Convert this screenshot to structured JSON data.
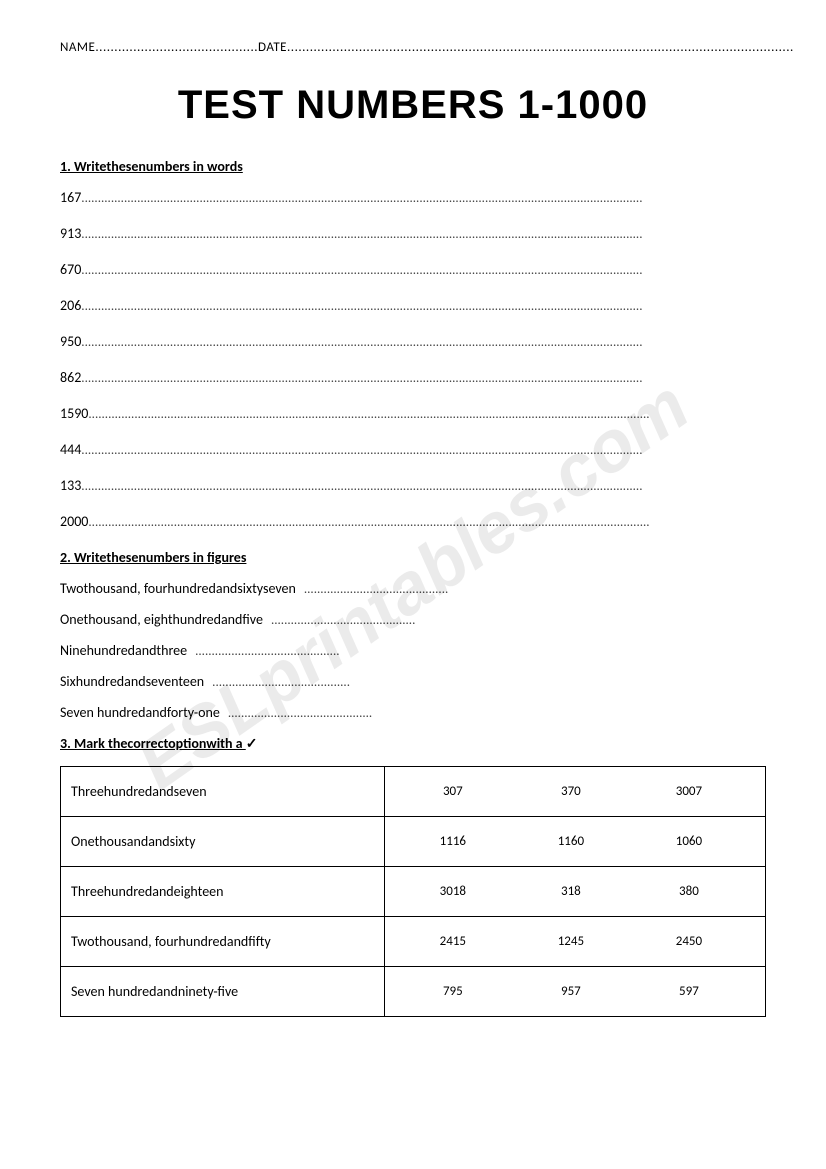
{
  "header": {
    "name_label": "NAME",
    "date_label": "DATE",
    "name_dots": "...........................................",
    "date_dots": "......................................................................................................................................"
  },
  "title": "TEST NUMBERS 1-1000",
  "watermark": "ESLprintables.com",
  "section1": {
    "heading": "1. Writethesenumbers in words",
    "items": [
      "167",
      "913",
      "670",
      "206",
      "950",
      "862",
      "1590",
      "444",
      "133",
      "2000"
    ],
    "dots_long": "..........................................................................................................................................................................."
  },
  "section2": {
    "heading": "2. Writethesenumbers in figures",
    "items": [
      {
        "text": "Twothousand, fourhundredandsixtyseven",
        "dots": "............................................"
      },
      {
        "text": "Onethousand, eighthundredandfive",
        "dots": "............................................"
      },
      {
        "text": "Ninehundredandthree",
        "dots": "............................................"
      },
      {
        "text": "Sixhundredandseventeen",
        "dots": ".........................................."
      },
      {
        "text": "Seven hundredandforty-one",
        "dots": "............................................"
      }
    ]
  },
  "section3": {
    "heading_pre": "3. Mark thecorrectoptionwith a ",
    "check": "✓",
    "rows": [
      {
        "label": "Threehundredandseven",
        "opts": [
          "307",
          "370",
          "3007"
        ]
      },
      {
        "label": "Onethousandandsixty",
        "opts": [
          "1116",
          "1160",
          "1060"
        ]
      },
      {
        "label": "Threehundredandeighteen",
        "opts": [
          "3018",
          "318",
          "380"
        ]
      },
      {
        "label": "Twothousand, fourhundredandfifty",
        "opts": [
          "2415",
          "1245",
          "2450"
        ]
      },
      {
        "label": "Seven hundredandninety-five",
        "opts": [
          "795",
          "957",
          "597"
        ]
      }
    ]
  }
}
